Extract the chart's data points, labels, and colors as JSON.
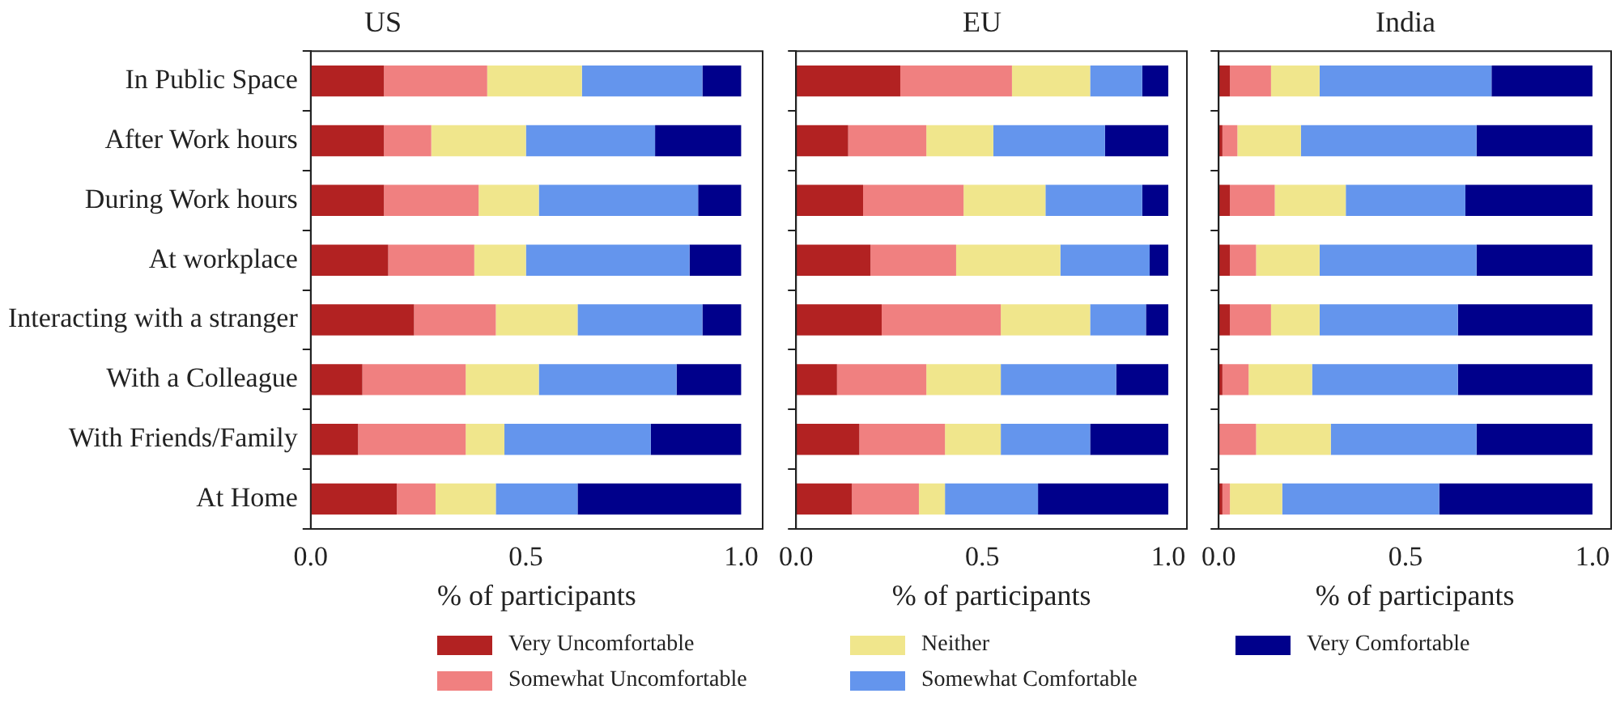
{
  "chart_data": [
    {
      "type": "bar",
      "title": "US",
      "xlabel": "% of participants",
      "orientation": "horizontal",
      "stacked": true,
      "legend": "bottom",
      "categories": [
        "In Public Space",
        "After Work hours",
        "During Work hours",
        "At workplace",
        "Interacting with a stranger",
        "With a Colleague",
        "With Friends/Family",
        "At Home"
      ],
      "xlim": [
        0,
        1.05
      ],
      "xticks": [
        {
          "value": 0,
          "label": "0.0"
        },
        {
          "value": 0.5,
          "label": "0.5"
        },
        {
          "value": 1,
          "label": "1.0"
        }
      ],
      "series": [
        {
          "name": "Very Uncomfortable",
          "color": "#b22222",
          "values": [
            0.17,
            0.17,
            0.17,
            0.18,
            0.24,
            0.12,
            0.11,
            0.2
          ]
        },
        {
          "name": "Somewhat Uncomfortable",
          "color": "#f08080",
          "values": [
            0.24,
            0.11,
            0.22,
            0.2,
            0.19,
            0.24,
            0.25,
            0.09
          ]
        },
        {
          "name": "Neither",
          "color": "#f0e68c",
          "values": [
            0.22,
            0.22,
            0.14,
            0.12,
            0.19,
            0.17,
            0.09,
            0.14
          ]
        },
        {
          "name": "Somewhat Comfortable",
          "color": "#6495ed",
          "values": [
            0.28,
            0.3,
            0.37,
            0.38,
            0.29,
            0.32,
            0.34,
            0.19
          ]
        },
        {
          "name": "Very Comfortable",
          "color": "#00008b",
          "values": [
            0.09,
            0.2,
            0.1,
            0.12,
            0.09,
            0.15,
            0.21,
            0.38
          ]
        }
      ]
    },
    {
      "type": "bar",
      "title": "EU",
      "xlabel": "% of participants",
      "orientation": "horizontal",
      "stacked": true,
      "legend": "bottom",
      "categories": [
        null,
        null,
        null,
        null,
        null,
        null,
        null,
        null
      ],
      "xlim": [
        0,
        1.05
      ],
      "xticks": [
        {
          "value": 0,
          "label": "0.0"
        },
        {
          "value": 0.5,
          "label": "0.5"
        },
        {
          "value": 1,
          "label": "1.0"
        }
      ],
      "series": [
        {
          "name": "Very Uncomfortable",
          "color": "#b22222",
          "values": [
            0.28,
            0.14,
            0.18,
            0.2,
            0.23,
            0.11,
            0.17,
            0.15
          ]
        },
        {
          "name": "Somewhat Uncomfortable",
          "color": "#f08080",
          "values": [
            0.3,
            0.21,
            0.27,
            0.23,
            0.32,
            0.24,
            0.23,
            0.18
          ]
        },
        {
          "name": "Neither",
          "color": "#f0e68c",
          "values": [
            0.21,
            0.18,
            0.22,
            0.28,
            0.24,
            0.2,
            0.15,
            0.07
          ]
        },
        {
          "name": "Somewhat Comfortable",
          "color": "#6495ed",
          "values": [
            0.14,
            0.3,
            0.26,
            0.24,
            0.15,
            0.31,
            0.24,
            0.25
          ]
        },
        {
          "name": "Very Comfortable",
          "color": "#00008b",
          "values": [
            0.07,
            0.17,
            0.07,
            0.05,
            0.06,
            0.14,
            0.21,
            0.35
          ]
        }
      ]
    },
    {
      "type": "bar",
      "title": "India",
      "xlabel": "% of participants",
      "orientation": "horizontal",
      "stacked": true,
      "legend": "bottom",
      "categories": [
        null,
        null,
        null,
        null,
        null,
        null,
        null,
        null
      ],
      "xlim": [
        0,
        1.05
      ],
      "xticks": [
        {
          "value": 0,
          "label": "0.0"
        },
        {
          "value": 0.5,
          "label": "0.5"
        },
        {
          "value": 1,
          "label": "1.0"
        }
      ],
      "series": [
        {
          "name": "Very Uncomfortable",
          "color": "#b22222",
          "values": [
            0.03,
            0.01,
            0.03,
            0.03,
            0.03,
            0.01,
            0,
            0.01
          ]
        },
        {
          "name": "Somewhat Uncomfortable",
          "color": "#f08080",
          "values": [
            0.11,
            0.04,
            0.12,
            0.07,
            0.11,
            0.07,
            0.1,
            0.02
          ]
        },
        {
          "name": "Neither",
          "color": "#f0e68c",
          "values": [
            0.13,
            0.17,
            0.19,
            0.17,
            0.13,
            0.17,
            0.2,
            0.14
          ]
        },
        {
          "name": "Somewhat Comfortable",
          "color": "#6495ed",
          "values": [
            0.46,
            0.47,
            0.32,
            0.42,
            0.37,
            0.39,
            0.39,
            0.42
          ]
        },
        {
          "name": "Very Comfortable",
          "color": "#00008b",
          "values": [
            0.27,
            0.31,
            0.34,
            0.31,
            0.36,
            0.36,
            0.31,
            0.41
          ]
        }
      ]
    }
  ]
}
